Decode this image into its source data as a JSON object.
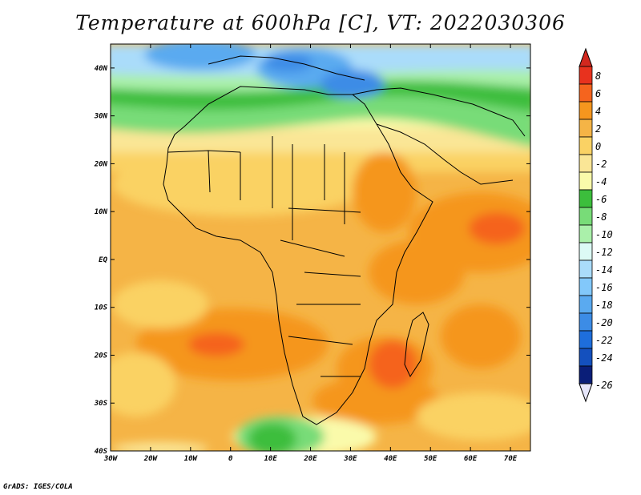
{
  "title": "Temperature at 600hPa [C], VT: 2022030306",
  "credit": "GrADS: IGES/COLA",
  "map": {
    "lon_range": [
      -30,
      75
    ],
    "lat_range": [
      -40,
      45
    ],
    "x_ticks": [
      {
        "lon": -30,
        "label": "30W"
      },
      {
        "lon": -20,
        "label": "20W"
      },
      {
        "lon": -10,
        "label": "10W"
      },
      {
        "lon": 0,
        "label": "0"
      },
      {
        "lon": 10,
        "label": "10E"
      },
      {
        "lon": 20,
        "label": "20E"
      },
      {
        "lon": 30,
        "label": "30E"
      },
      {
        "lon": 40,
        "label": "40E"
      },
      {
        "lon": 50,
        "label": "50E"
      },
      {
        "lon": 60,
        "label": "60E"
      },
      {
        "lon": 70,
        "label": "70E"
      }
    ],
    "y_ticks": [
      {
        "lat": 40,
        "label": "40N"
      },
      {
        "lat": 30,
        "label": "30N"
      },
      {
        "lat": 20,
        "label": "20N"
      },
      {
        "lat": 10,
        "label": "10N"
      },
      {
        "lat": 0,
        "label": "EQ"
      },
      {
        "lat": -10,
        "label": "10S"
      },
      {
        "lat": -20,
        "label": "20S"
      },
      {
        "lat": -30,
        "label": "30S"
      },
      {
        "lat": -40,
        "label": "40S"
      }
    ]
  },
  "colorbar": {
    "levels": [
      {
        "label": "8",
        "color": "#e8321e"
      },
      {
        "label": "6",
        "color": "#f5641e"
      },
      {
        "label": "4",
        "color": "#f5961e"
      },
      {
        "label": "2",
        "color": "#f5b446"
      },
      {
        "label": "0",
        "color": "#fad264"
      },
      {
        "label": "-2",
        "color": "#fae696"
      },
      {
        "label": "-4",
        "color": "#fafaaa"
      },
      {
        "label": "-6",
        "color": "#3cbe3c"
      },
      {
        "label": "-8",
        "color": "#78dc78"
      },
      {
        "label": "-10",
        "color": "#aaf0aa"
      },
      {
        "label": "-12",
        "color": "#dcfaf5"
      },
      {
        "label": "-14",
        "color": "#aadcfa"
      },
      {
        "label": "-16",
        "color": "#82c8fa"
      },
      {
        "label": "-18",
        "color": "#5aaaf0"
      },
      {
        "label": "-20",
        "color": "#3c8ce6"
      },
      {
        "label": "-22",
        "color": "#1e6edc"
      },
      {
        "label": "-24",
        "color": "#1450be"
      },
      {
        "label": "-26",
        "color": "#0a1e78"
      }
    ],
    "over_color": "#d2281e",
    "under_color": "#e6e6fa"
  }
}
